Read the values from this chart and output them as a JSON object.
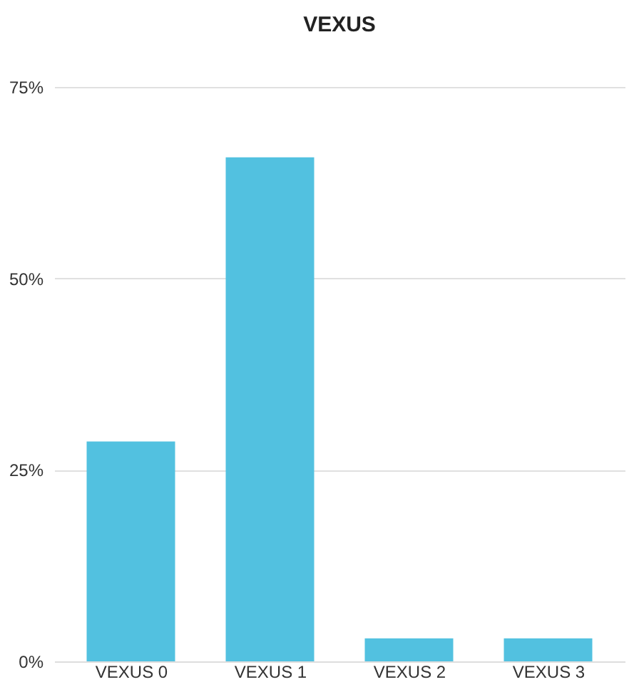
{
  "chart_data": {
    "type": "bar",
    "title": "VEXUS",
    "categories": [
      "VEXUS 0",
      "VEXUS 1",
      "VEXUS 2",
      "VEXUS 3"
    ],
    "values": [
      28.7,
      65.8,
      3.0,
      3.0
    ],
    "color": "#52c1e0",
    "ylim": [
      0,
      75
    ],
    "yticks": [
      {
        "value": 0,
        "label": "0%"
      },
      {
        "value": 25,
        "label": "25%"
      },
      {
        "value": 50,
        "label": "50%"
      },
      {
        "value": 75,
        "label": "75%"
      }
    ],
    "grid": "y"
  }
}
